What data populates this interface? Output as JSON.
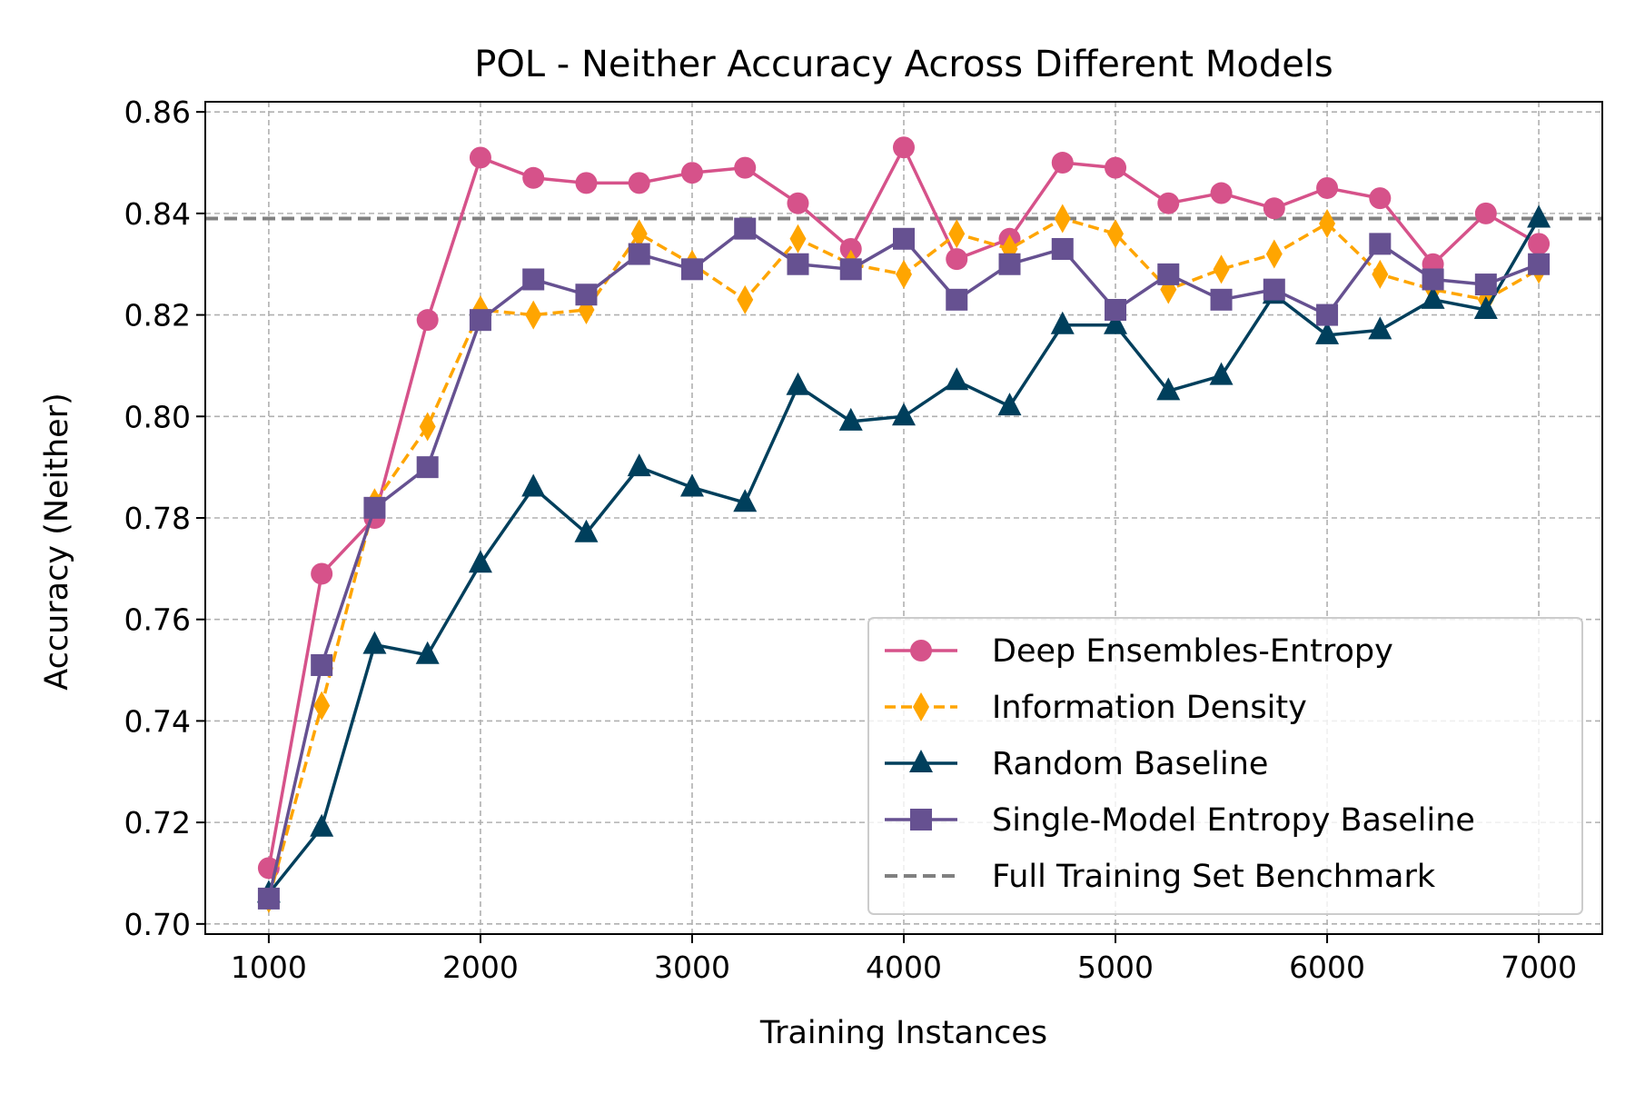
{
  "chart_data": {
    "type": "line",
    "title": "POL - Neither Accuracy Across Different Models",
    "xlabel": "Training Instances",
    "ylabel": "Accuracy (Neither)",
    "xlim": [
      700,
      7300
    ],
    "ylim": [
      0.698,
      0.862
    ],
    "x_ticks": [
      1000,
      2000,
      3000,
      4000,
      5000,
      6000,
      7000
    ],
    "y_ticks": [
      0.7,
      0.72,
      0.74,
      0.76,
      0.78,
      0.8,
      0.82,
      0.84,
      0.86
    ],
    "grid": true,
    "legend_position": "lower-right",
    "x": [
      1000,
      1250,
      1500,
      1750,
      2000,
      2250,
      2500,
      2750,
      3000,
      3250,
      3500,
      3750,
      4000,
      4250,
      4500,
      4750,
      5000,
      5250,
      5500,
      5750,
      6000,
      6250,
      6500,
      6750,
      7000
    ],
    "series": [
      {
        "name": "Deep Ensembles-Entropy",
        "color": "#d6528a",
        "marker": "circle",
        "dash": "solid",
        "values": [
          0.711,
          0.769,
          0.78,
          0.819,
          0.851,
          0.847,
          0.846,
          0.846,
          0.848,
          0.849,
          0.842,
          0.833,
          0.853,
          0.831,
          0.835,
          0.85,
          0.849,
          0.842,
          0.844,
          0.841,
          0.845,
          0.843,
          0.83,
          0.84,
          0.834
        ]
      },
      {
        "name": "Information Density",
        "color": "#ffa500",
        "marker": "diamond",
        "dash": "dashed",
        "values": [
          0.705,
          0.743,
          0.783,
          0.798,
          0.821,
          0.82,
          0.821,
          0.836,
          0.83,
          0.823,
          0.835,
          0.83,
          0.828,
          0.836,
          0.833,
          0.839,
          0.836,
          0.825,
          0.829,
          0.832,
          0.838,
          0.828,
          0.825,
          0.823,
          0.829
        ]
      },
      {
        "name": "Random Baseline",
        "color": "#003f5c",
        "marker": "triangle",
        "dash": "solid",
        "values": [
          0.706,
          0.719,
          0.755,
          0.753,
          0.771,
          0.786,
          0.777,
          0.79,
          0.786,
          0.783,
          0.806,
          0.799,
          0.8,
          0.807,
          0.802,
          0.818,
          0.818,
          0.805,
          0.808,
          0.824,
          0.816,
          0.817,
          0.823,
          0.821,
          0.839
        ]
      },
      {
        "name": "Single-Model Entropy Baseline",
        "color": "#665191",
        "marker": "square",
        "dash": "solid",
        "values": [
          0.705,
          0.751,
          0.782,
          0.79,
          0.819,
          0.827,
          0.824,
          0.832,
          0.829,
          0.837,
          0.83,
          0.829,
          0.835,
          0.823,
          0.83,
          0.833,
          0.821,
          0.828,
          0.823,
          0.825,
          0.82,
          0.834,
          0.827,
          0.826,
          0.83
        ]
      }
    ],
    "benchmark": {
      "name": "Full Training Set Benchmark",
      "value": 0.839,
      "color": "#808080"
    }
  }
}
